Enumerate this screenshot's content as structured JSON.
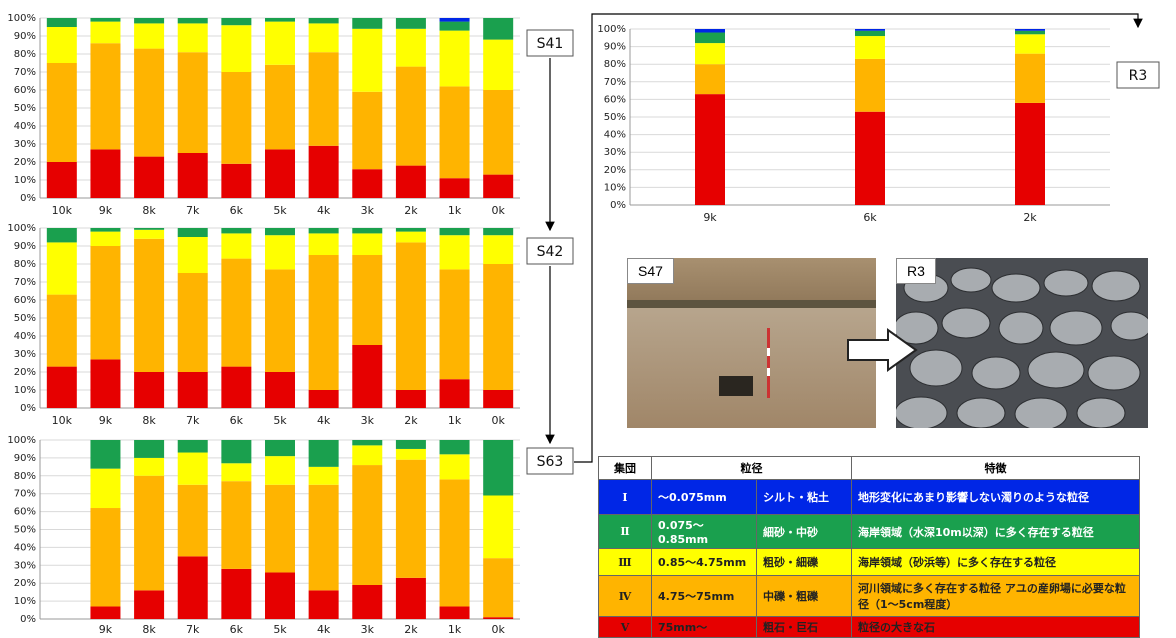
{
  "colors": {
    "I": "#0026e6",
    "II": "#1aa04e",
    "III": "#ffff00",
    "IV": "#ffb400",
    "V": "#e60000"
  },
  "chart_data": [
    {
      "type": "bar",
      "stacked": true,
      "label": "S41",
      "categories": [
        "10k",
        "9k",
        "8k",
        "7k",
        "6k",
        "5k",
        "4k",
        "3k",
        "2k",
        "1k",
        "0k"
      ],
      "y_ticks": [
        "0%",
        "10%",
        "20%",
        "30%",
        "40%",
        "50%",
        "60%",
        "70%",
        "80%",
        "90%",
        "100%"
      ],
      "ylim": [
        0,
        100
      ],
      "series": [
        {
          "group": "V",
          "values": [
            20,
            27,
            23,
            25,
            19,
            27,
            29,
            16,
            18,
            11,
            13
          ]
        },
        {
          "group": "IV",
          "values": [
            55,
            59,
            60,
            56,
            51,
            47,
            52,
            43,
            55,
            51,
            47
          ]
        },
        {
          "group": "III",
          "values": [
            20,
            12,
            14,
            16,
            26,
            24,
            16,
            35,
            21,
            31,
            28
          ]
        },
        {
          "group": "II",
          "values": [
            5,
            2,
            3,
            3,
            4,
            2,
            3,
            6,
            6,
            5,
            12
          ]
        },
        {
          "group": "I",
          "values": [
            0,
            0,
            0,
            0,
            0,
            0,
            0,
            0,
            0,
            2,
            0
          ]
        }
      ]
    },
    {
      "type": "bar",
      "stacked": true,
      "label": "S42",
      "categories": [
        "10k",
        "9k",
        "8k",
        "7k",
        "6k",
        "5k",
        "4k",
        "3k",
        "2k",
        "1k",
        "0k"
      ],
      "y_ticks": [
        "0%",
        "10%",
        "20%",
        "30%",
        "40%",
        "50%",
        "60%",
        "70%",
        "80%",
        "90%",
        "100%"
      ],
      "ylim": [
        0,
        100
      ],
      "series": [
        {
          "group": "V",
          "values": [
            23,
            27,
            20,
            20,
            23,
            20,
            10,
            35,
            10,
            16,
            10
          ]
        },
        {
          "group": "IV",
          "values": [
            40,
            63,
            74,
            55,
            60,
            57,
            75,
            50,
            82,
            61,
            70
          ]
        },
        {
          "group": "III",
          "values": [
            29,
            8,
            5,
            20,
            14,
            19,
            12,
            12,
            6,
            19,
            16
          ]
        },
        {
          "group": "II",
          "values": [
            8,
            2,
            1,
            5,
            3,
            4,
            3,
            3,
            2,
            4,
            4
          ]
        },
        {
          "group": "I",
          "values": [
            0,
            0,
            0,
            0,
            0,
            0,
            0,
            0,
            0,
            0,
            0
          ]
        }
      ]
    },
    {
      "type": "bar",
      "stacked": true,
      "label": "S63",
      "categories": [
        "",
        "9k",
        "8k",
        "7k",
        "6k",
        "5k",
        "4k",
        "3k",
        "2k",
        "1k",
        "0k"
      ],
      "y_ticks": [
        "0%",
        "10%",
        "20%",
        "30%",
        "40%",
        "50%",
        "60%",
        "70%",
        "80%",
        "90%",
        "100%"
      ],
      "ylim": [
        0,
        100
      ],
      "series": [
        {
          "group": "V",
          "values": [
            null,
            7,
            16,
            35,
            28,
            26,
            16,
            19,
            23,
            7,
            1
          ]
        },
        {
          "group": "IV",
          "values": [
            null,
            55,
            64,
            40,
            49,
            49,
            59,
            67,
            66,
            71,
            33
          ]
        },
        {
          "group": "III",
          "values": [
            null,
            22,
            10,
            18,
            10,
            16,
            10,
            11,
            6,
            14,
            35
          ]
        },
        {
          "group": "II",
          "values": [
            null,
            16,
            10,
            7,
            13,
            9,
            15,
            3,
            5,
            8,
            31
          ]
        },
        {
          "group": "I",
          "values": [
            null,
            0,
            0,
            0,
            0,
            0,
            0,
            0,
            0,
            0,
            0
          ]
        }
      ]
    },
    {
      "type": "bar",
      "stacked": true,
      "label": "R3",
      "categories": [
        "9k",
        "6k",
        "2k"
      ],
      "y_ticks": [
        "0%",
        "10%",
        "20%",
        "30%",
        "40%",
        "50%",
        "60%",
        "70%",
        "80%",
        "90%",
        "100%"
      ],
      "ylim": [
        0,
        100
      ],
      "series": [
        {
          "group": "V",
          "values": [
            63,
            53,
            58
          ]
        },
        {
          "group": "IV",
          "values": [
            17,
            30,
            28
          ]
        },
        {
          "group": "III",
          "values": [
            12,
            13,
            11
          ]
        },
        {
          "group": "II",
          "values": [
            6,
            3,
            2
          ]
        },
        {
          "group": "I",
          "values": [
            2,
            1,
            1
          ]
        }
      ]
    }
  ],
  "photos": {
    "left_label": "S47",
    "right_label": "R3"
  },
  "legend_table": {
    "headers": [
      "集団",
      "粒径",
      "特徴"
    ],
    "rows": [
      {
        "id": "I",
        "roman": "Ⅰ",
        "range": "～0.075mm",
        "name": "シルト・粘土",
        "desc": "地形変化にあまり影響しない濁りのような粒径"
      },
      {
        "id": "II",
        "roman": "Ⅱ",
        "range": "0.075～0.85mm",
        "name": "細砂・中砂",
        "desc": "海岸領域（水深10m以深）に多く存在する粒径"
      },
      {
        "id": "III",
        "roman": "Ⅲ",
        "range": "0.85～4.75mm",
        "name": "粗砂・細礫",
        "desc": "海岸領域（砂浜等）に多く存在する粒径"
      },
      {
        "id": "IV",
        "roman": "Ⅳ",
        "range": "4.75～75mm",
        "name": "中礫・粗礫",
        "desc": "河川領域に多く存在する粒径 アユの産卵場に必要な粒径（1～5cm程度）"
      },
      {
        "id": "V",
        "roman": "Ⅴ",
        "range": "75mm～",
        "name": "粗石・巨石",
        "desc": "粒径の大きな石"
      }
    ]
  }
}
